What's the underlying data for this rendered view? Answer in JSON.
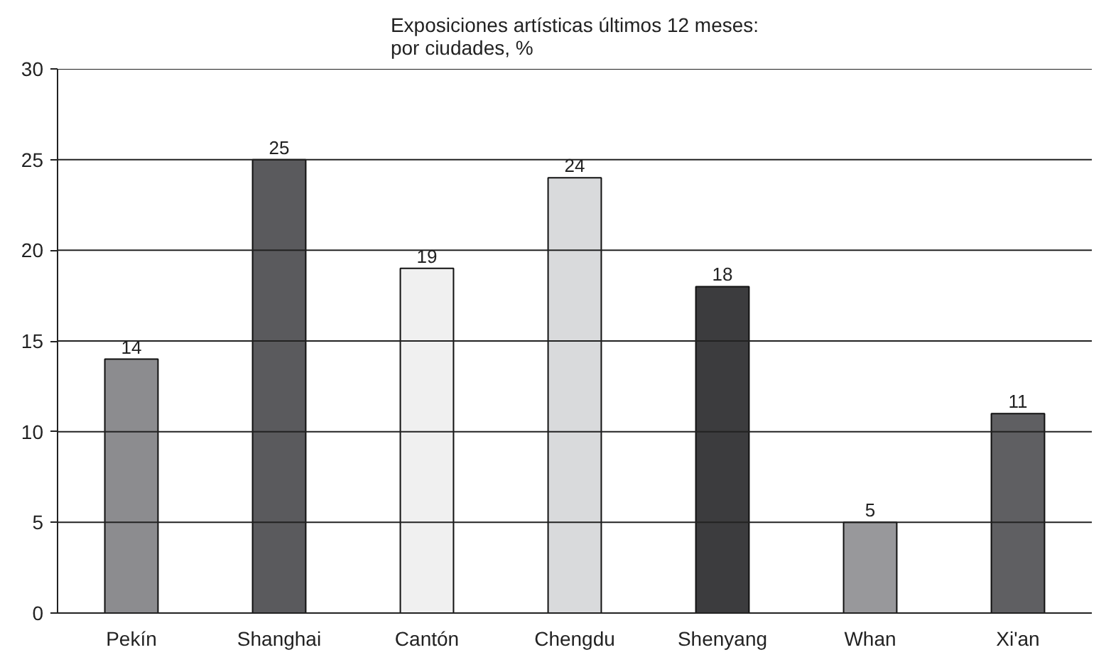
{
  "chart_data": {
    "type": "bar",
    "title": "Exposiciones artísticas últimos 12 meses:\npor ciudades, %",
    "categories": [
      "Pekín",
      "Shanghai",
      "Cantón",
      "Chengdu",
      "Shenyang",
      "Whan",
      "Xi'an"
    ],
    "values": [
      14,
      25,
      19,
      24,
      18,
      5,
      11
    ],
    "colors": [
      "#8c8c8f",
      "#5a5a5d",
      "#f0f0f0",
      "#d9dadc",
      "#3c3c3e",
      "#98989b",
      "#5f5f62"
    ],
    "ylim": [
      0,
      30
    ],
    "yticks": [
      0,
      5,
      10,
      15,
      20,
      25,
      30
    ],
    "grid": "y",
    "data_labels": true
  }
}
